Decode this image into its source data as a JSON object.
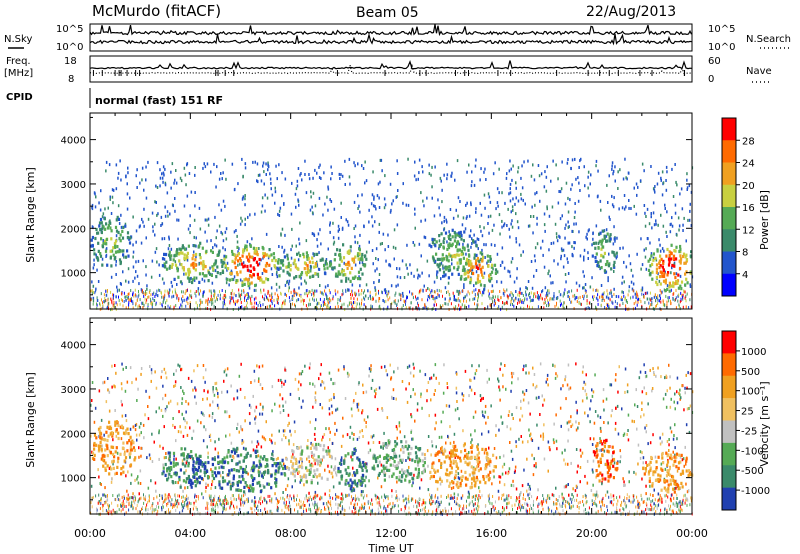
{
  "header": {
    "station": "McMurdo (fitACF)",
    "beam": "Beam 05",
    "date": "22/Aug/2013"
  },
  "status_panels": {
    "nsky_label": "N.Sky",
    "nsearch_label": "N.Search",
    "noise_tick_top": "10^5",
    "noise_tick_bottom": "10^0",
    "freq_label": "Freq.",
    "freq_unit": "[MHz]",
    "freq_ticks": [
      "18",
      "8"
    ],
    "nave_label": "Nave",
    "nave_ticks": [
      "60",
      "0"
    ],
    "cpid_label": "CPID",
    "cpid_value": "normal (fast) 151 RF"
  },
  "chart_data": [
    {
      "type": "heatmap",
      "panel": "power",
      "ylabel": "Slant Range [km]",
      "yticks": [
        1000,
        2000,
        3000,
        4000
      ],
      "ylim": [
        180,
        4600
      ],
      "xlabel": "Time UT",
      "xticks": [
        "00:00",
        "04:00",
        "08:00",
        "12:00",
        "16:00",
        "20:00",
        "00:00"
      ],
      "xlim_hours": [
        0,
        24
      ],
      "colorbar": {
        "label": "Power [dB]",
        "ticks": [
          "4",
          "8",
          "12",
          "16",
          "20",
          "24",
          "28"
        ],
        "colors": [
          "#0000ff",
          "#2255cc",
          "#3a8a6a",
          "#55aa55",
          "#c8d040",
          "#f0a020",
          "#ff6a00",
          "#ff0000"
        ]
      },
      "echo_regions_hours_km": [
        {
          "t0": 0.0,
          "t1": 1.6,
          "r0": 1150,
          "r1": 2300,
          "level": 3
        },
        {
          "t0": 2.8,
          "t1": 5.4,
          "r0": 800,
          "r1": 1700,
          "level": 4
        },
        {
          "t0": 5.2,
          "t1": 7.6,
          "r0": 700,
          "r1": 1650,
          "level": 6
        },
        {
          "t0": 7.4,
          "t1": 9.6,
          "r0": 900,
          "r1": 1500,
          "level": 4
        },
        {
          "t0": 9.6,
          "t1": 11.0,
          "r0": 800,
          "r1": 1700,
          "level": 4
        },
        {
          "t0": 13.4,
          "t1": 15.6,
          "r0": 900,
          "r1": 2000,
          "level": 3
        },
        {
          "t0": 14.6,
          "t1": 16.2,
          "r0": 700,
          "r1": 1500,
          "level": 5
        },
        {
          "t0": 20.0,
          "t1": 21.0,
          "r0": 1000,
          "r1": 2000,
          "level": 3
        },
        {
          "t0": 22.2,
          "t1": 24.0,
          "r0": 600,
          "r1": 1700,
          "level": 6
        }
      ]
    },
    {
      "type": "heatmap",
      "panel": "velocity",
      "ylabel": "Slant Range [km]",
      "yticks": [
        1000,
        2000,
        3000,
        4000
      ],
      "ylim": [
        180,
        4600
      ],
      "xlabel": "Time UT",
      "xticks": [
        "00:00",
        "04:00",
        "08:00",
        "12:00",
        "16:00",
        "20:00",
        "00:00"
      ],
      "xlim_hours": [
        0,
        24
      ],
      "colorbar": {
        "label": "Velocity [m s⁻¹]",
        "ticks": [
          "1000",
          "500",
          "100",
          "25",
          "-25",
          "-100",
          "-500",
          "-1000"
        ],
        "colors": [
          "#2040b0",
          "#3a8a6a",
          "#55aa55",
          "#c0c0c0",
          "#f0c060",
          "#f0a020",
          "#ff6a00",
          "#ff0000"
        ]
      },
      "echo_regions_hours_km": [
        {
          "t0": 0.0,
          "t1": 1.8,
          "r0": 1100,
          "r1": 2300,
          "level": 5
        },
        {
          "t0": 2.8,
          "t1": 4.6,
          "r0": 800,
          "r1": 1700,
          "level": 1
        },
        {
          "t0": 4.0,
          "t1": 4.6,
          "r0": 900,
          "r1": 1500,
          "level": 0
        },
        {
          "t0": 4.6,
          "t1": 7.8,
          "r0": 700,
          "r1": 1700,
          "level": 1
        },
        {
          "t0": 7.8,
          "t1": 9.8,
          "r0": 900,
          "r1": 1800,
          "level": 3
        },
        {
          "t0": 9.8,
          "t1": 11.0,
          "r0": 700,
          "r1": 1600,
          "level": 1
        },
        {
          "t0": 11.2,
          "t1": 13.4,
          "r0": 900,
          "r1": 1900,
          "level": 2
        },
        {
          "t0": 13.4,
          "t1": 16.2,
          "r0": 800,
          "r1": 1800,
          "level": 5
        },
        {
          "t0": 20.0,
          "t1": 21.0,
          "r0": 900,
          "r1": 1900,
          "level": 6
        },
        {
          "t0": 22.0,
          "t1": 24.0,
          "r0": 700,
          "r1": 1600,
          "level": 5
        }
      ]
    }
  ]
}
